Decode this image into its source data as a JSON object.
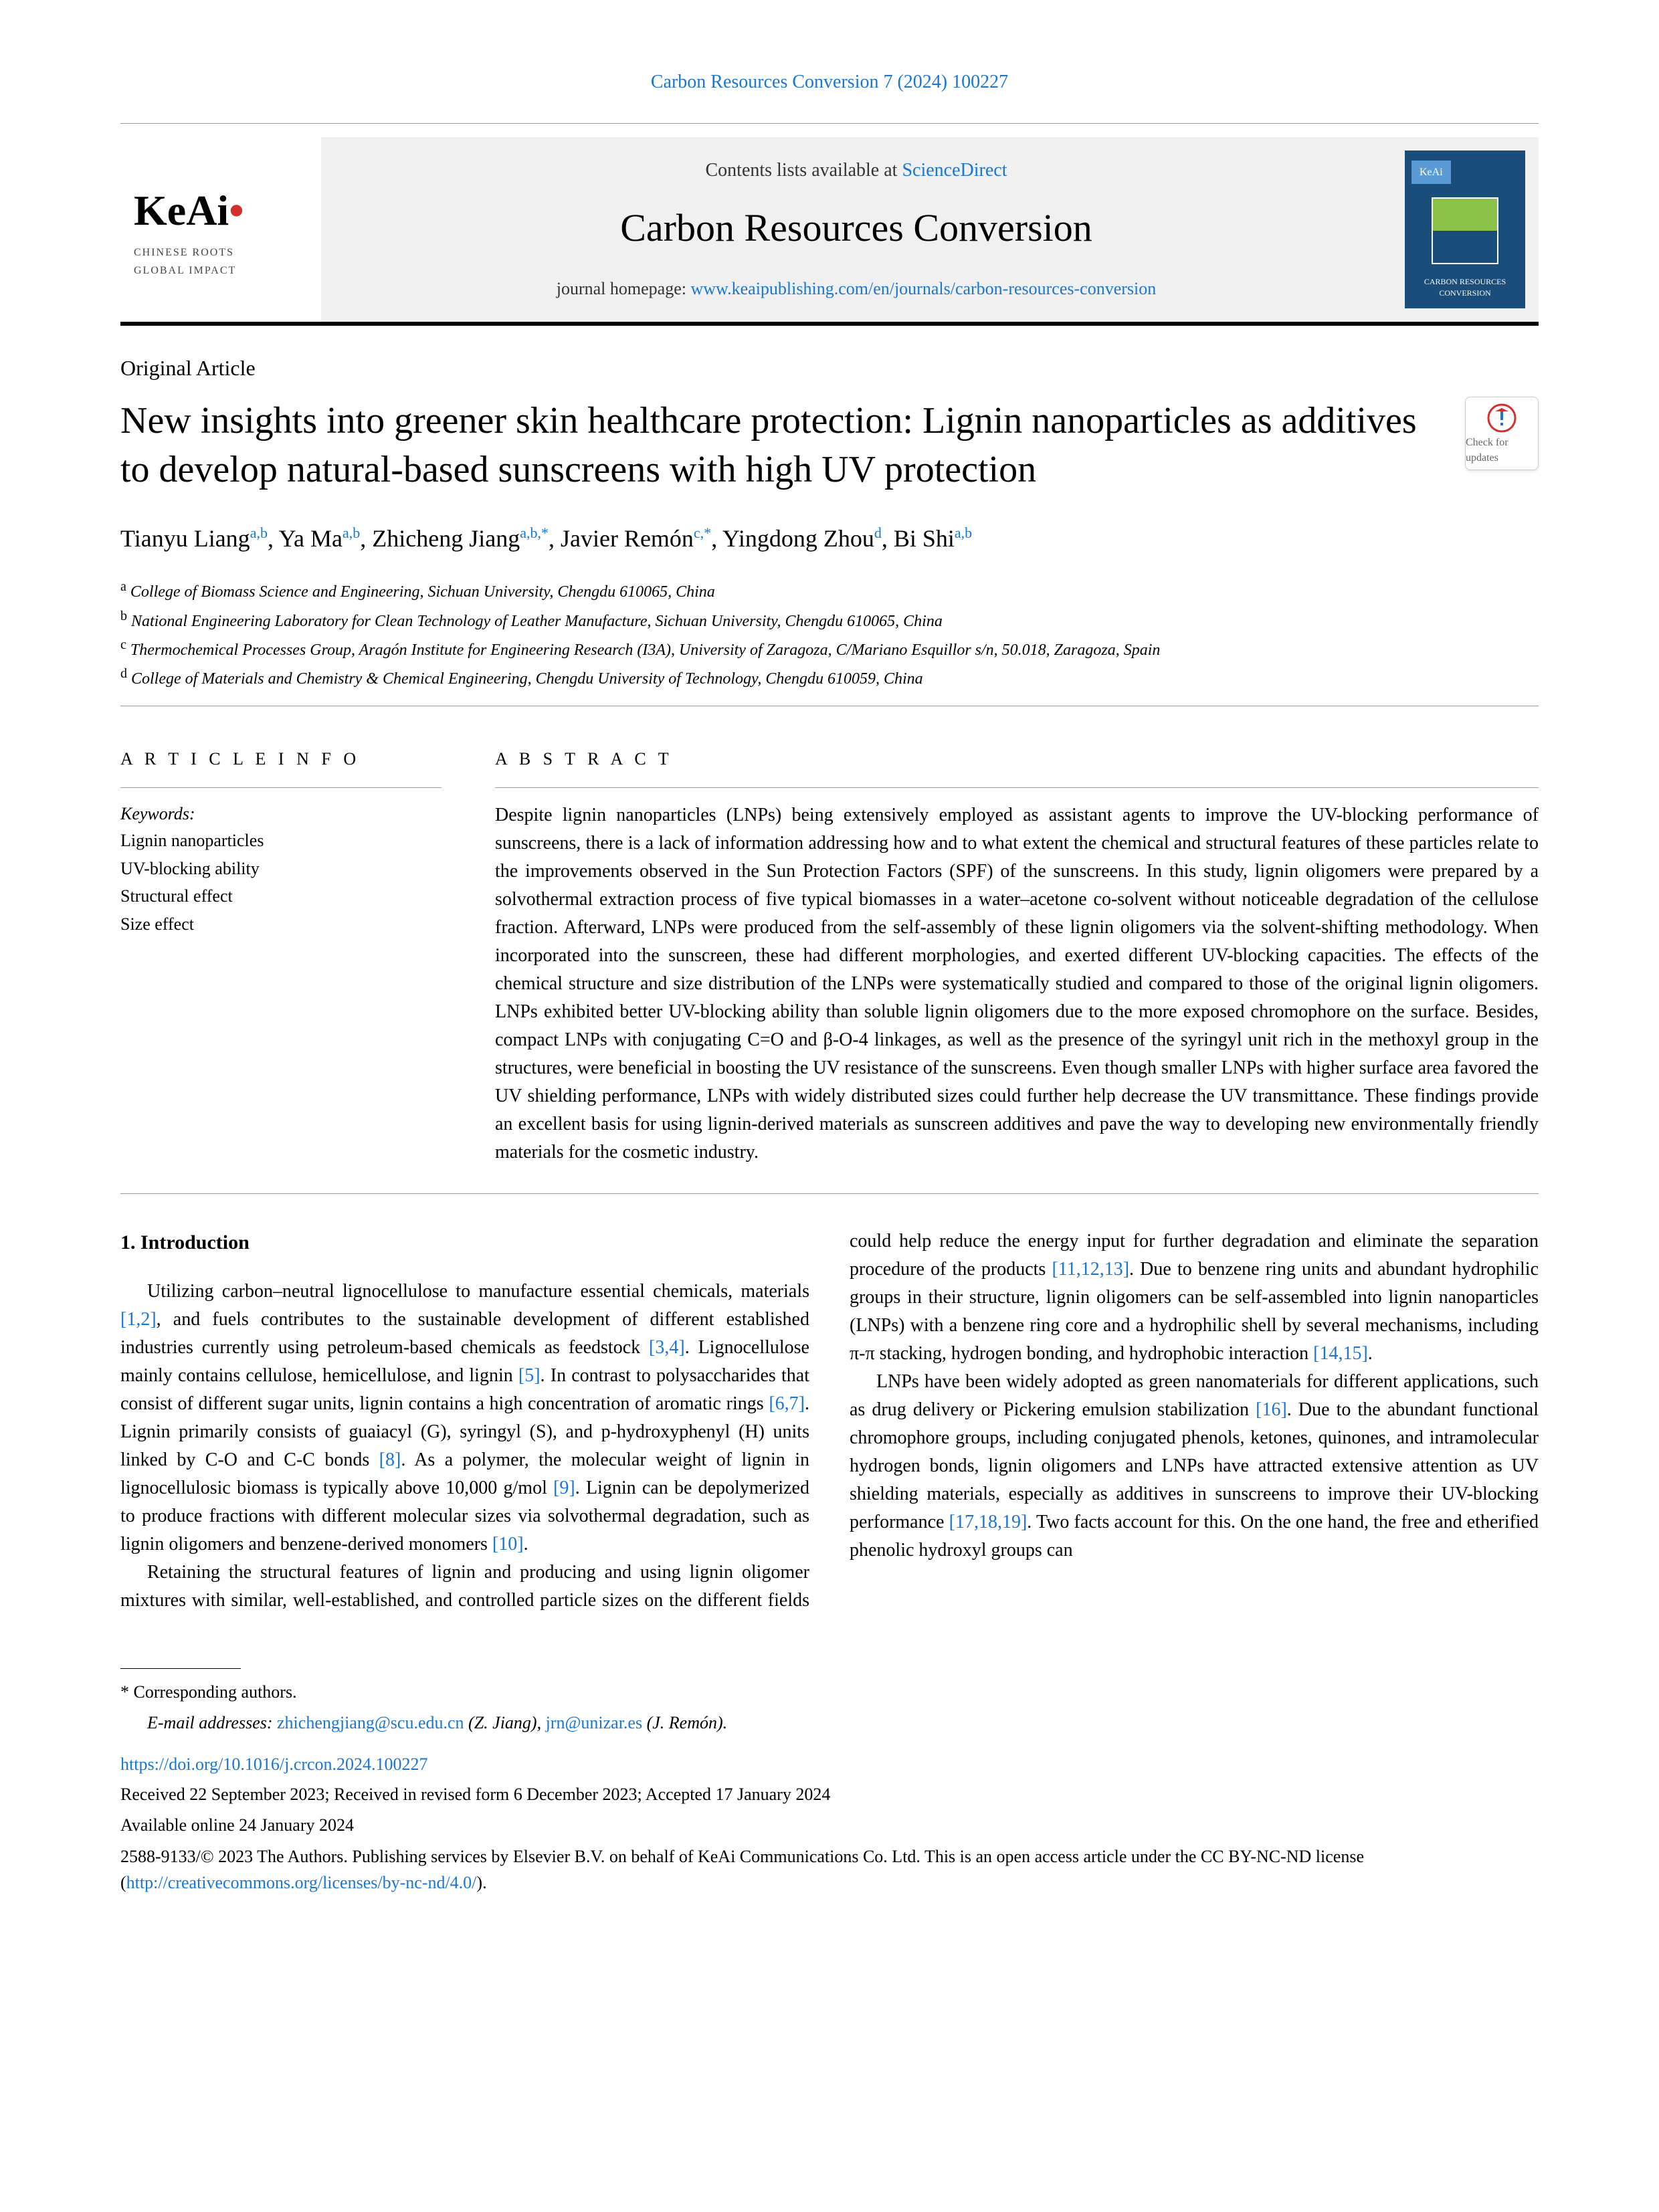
{
  "header": {
    "journal_ref": "Carbon Resources Conversion 7 (2024) 100227",
    "contents_prefix": "Contents lists available at ",
    "contents_link": "ScienceDirect",
    "journal_name": "Carbon Resources Conversion",
    "homepage_prefix": "journal homepage: ",
    "homepage_url": "www.keaipublishing.com/en/journals/carbon-resources-conversion",
    "logo_main": "KeAi",
    "logo_sub1": "CHINESE ROOTS",
    "logo_sub2": "GLOBAL IMPACT",
    "cover_label": "CARBON RESOURCES CONVERSION"
  },
  "updates_badge": "Check for updates",
  "article": {
    "type": "Original Article",
    "title": "New insights into greener skin healthcare protection: Lignin nanoparticles as additives to develop natural-based sunscreens with high UV protection",
    "authors_html": "Tianyu Liang|a,b|, Ya Ma|a,b|, Zhicheng Jiang|a,b,*|, Javier Remón|c,*|, Yingdong Zhou|d|, Bi Shi|a,b|"
  },
  "affiliations": {
    "a": "College of Biomass Science and Engineering, Sichuan University, Chengdu 610065, China",
    "b": "National Engineering Laboratory for Clean Technology of Leather Manufacture, Sichuan University, Chengdu 610065, China",
    "c": "Thermochemical Processes Group, Aragón Institute for Engineering Research (I3A), University of Zaragoza, C/Mariano Esquillor s/n, 50.018, Zaragoza, Spain",
    "d": "College of Materials and Chemistry & Chemical Engineering, Chengdu University of Technology, Chengdu 610059, China"
  },
  "info": {
    "heading": "A R T I C L E  I N F O",
    "keywords_label": "Keywords:",
    "keywords": [
      "Lignin nanoparticles",
      "UV-blocking ability",
      "Structural effect",
      "Size effect"
    ]
  },
  "abstract": {
    "heading": "A B S T R A C T",
    "text": "Despite lignin nanoparticles (LNPs) being extensively employed as assistant agents to improve the UV-blocking performance of sunscreens, there is a lack of information addressing how and to what extent the chemical and structural features of these particles relate to the improvements observed in the Sun Protection Factors (SPF) of the sunscreens. In this study, lignin oligomers were prepared by a solvothermal extraction process of five typical biomasses in a water–acetone co-solvent without noticeable degradation of the cellulose fraction. Afterward, LNPs were produced from the self-assembly of these lignin oligomers via the solvent-shifting methodology. When incorporated into the sunscreen, these had different morphologies, and exerted different UV-blocking capacities. The effects of the chemical structure and size distribution of the LNPs were systematically studied and compared to those of the original lignin oligomers. LNPs exhibited better UV-blocking ability than soluble lignin oligomers due to the more exposed chromophore on the surface. Besides, compact LNPs with conjugating C=O and β-O-4 linkages, as well as the presence of the syringyl unit rich in the methoxyl group in the structures, were beneficial in boosting the UV resistance of the sunscreens. Even though smaller LNPs with higher surface area favored the UV shielding performance, LNPs with widely distributed sizes could further help decrease the UV transmittance. These findings provide an excellent basis for using lignin-derived materials as sunscreen additives and pave the way to developing new environmentally friendly materials for the cosmetic industry."
  },
  "intro": {
    "heading": "1. Introduction",
    "p1": "Utilizing carbon–neutral lignocellulose to manufacture essential chemicals, materials [1,2], and fuels contributes to the sustainable development of different established industries currently using petroleum-based chemicals as feedstock [3,4]. Lignocellulose mainly contains cellulose, hemicellulose, and lignin [5]. In contrast to polysaccharides that consist of different sugar units, lignin contains a high concentration of aromatic rings [6,7]. Lignin primarily consists of guaiacyl (G), syringyl (S), and p-hydroxyphenyl (H) units linked by C-O and C-C bonds [8]. As a polymer, the molecular weight of lignin in lignocellulosic biomass is typically above 10,000 g/mol [9]. Lignin can be depolymerized to produce fractions with different molecular sizes via solvothermal degradation, such as lignin oligomers and benzene-derived monomers [10].",
    "p2": "Retaining the structural features of lignin and producing and using lignin oligomer mixtures with similar, well-established, and controlled particle sizes on the different fields could help reduce the energy input for further degradation and eliminate the separation procedure of the products [11,12,13]. Due to benzene ring units and abundant hydrophilic groups in their structure, lignin oligomers can be self-assembled into lignin nanoparticles (LNPs) with a benzene ring core and a hydrophilic shell by several mechanisms, including π-π stacking, hydrogen bonding, and hydrophobic interaction [14,15].",
    "p3": "LNPs have been widely adopted as green nanomaterials for different applications, such as drug delivery or Pickering emulsion stabilization [16]. Due to the abundant functional chromophore groups, including conjugated phenols, ketones, quinones, and intramolecular hydrogen bonds, lignin oligomers and LNPs have attracted extensive attention as UV shielding materials, especially as additives in sunscreens to improve their UV-blocking performance [17,18,19]. Two facts account for this. On the one hand, the free and etherified phenolic hydroxyl groups can"
  },
  "footer": {
    "corresponding": "* Corresponding authors.",
    "emails_prefix": "E-mail addresses: ",
    "email1": "zhichengjiang@scu.edu.cn",
    "email1_suffix": " (Z. Jiang), ",
    "email2": "jrn@unizar.es",
    "email2_suffix": " (J. Remón).",
    "doi": "https://doi.org/10.1016/j.crcon.2024.100227",
    "dates": "Received 22 September 2023; Received in revised form 6 December 2023; Accepted 17 January 2024",
    "available": "Available online 24 January 2024",
    "license_prefix": "2588-9133/© 2023 The Authors.  Publishing services by Elsevier B.V. on behalf of KeAi Communications Co.  Ltd.  This is an open access article under the CC BY-NC-ND license (",
    "license_url": "http://creativecommons.org/licenses/by-nc-nd/4.0/",
    "license_suffix": ")."
  },
  "colors": {
    "link": "#1976d2",
    "text": "#000000",
    "banner_bg": "#f0f0f0",
    "cover_bg": "#1a4d7a",
    "red_dot": "#d32f2f"
  }
}
